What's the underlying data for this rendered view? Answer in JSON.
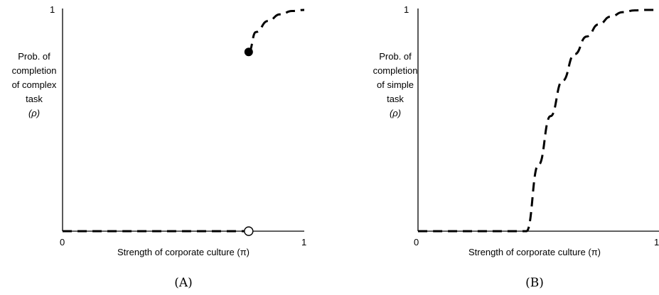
{
  "chart_data": [
    {
      "type": "line",
      "panel_label": "(A)",
      "xlabel": "Strength of corporate culture (π)",
      "ylabel_lines": [
        "Prob. of",
        "completion",
        "of complex",
        "task",
        "(ρ)"
      ],
      "x_ticks": [
        "0",
        "1"
      ],
      "y_ticks": [
        "1"
      ],
      "xlim": [
        0,
        1
      ],
      "ylim": [
        0,
        1
      ],
      "line_style": "dashed",
      "series": [
        {
          "segment": "lower",
          "x": [
            0,
            0.77
          ],
          "y": [
            0,
            0
          ],
          "end_marker": "open-circle"
        },
        {
          "segment": "upper",
          "x": [
            0.77,
            0.8,
            0.85,
            0.9,
            0.95,
            1.0
          ],
          "y": [
            0.81,
            0.9,
            0.95,
            0.98,
            0.995,
            1.0
          ],
          "start_marker": "filled-circle"
        }
      ],
      "grid": false
    },
    {
      "type": "line",
      "panel_label": "(B)",
      "xlabel": "Strength of corporate culture (π)",
      "ylabel_lines": [
        "Prob. of",
        "completion",
        "of simple",
        "task",
        "(ρ)"
      ],
      "x_ticks": [
        "0",
        "1"
      ],
      "y_ticks": [
        "1"
      ],
      "xlim": [
        0,
        1
      ],
      "ylim": [
        0,
        1
      ],
      "line_style": "dashed",
      "series": [
        {
          "segment": "curve",
          "x": [
            0,
            0.45,
            0.5,
            0.55,
            0.6,
            0.65,
            0.7,
            0.75,
            0.8,
            0.85,
            0.9,
            0.95,
            1.0
          ],
          "y": [
            0,
            0,
            0.3,
            0.52,
            0.68,
            0.8,
            0.88,
            0.935,
            0.97,
            0.99,
            0.998,
            1.0,
            1.0
          ]
        }
      ],
      "grid": false
    }
  ]
}
